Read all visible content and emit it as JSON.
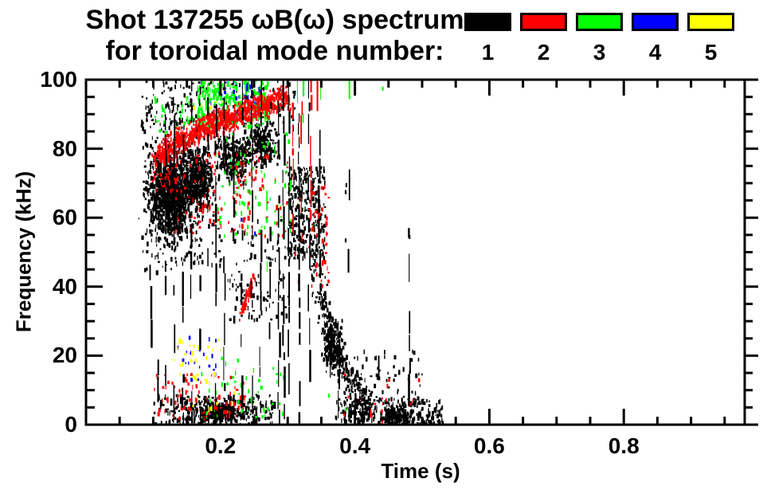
{
  "title": "Shot 137255 ωB(ω) spectrum",
  "subtitle": "for toroidal mode number:",
  "legend": [
    {
      "label": "1",
      "color": "#000000"
    },
    {
      "label": "2",
      "color": "#ff0000"
    },
    {
      "label": "3",
      "color": "#00ff00"
    },
    {
      "label": "4",
      "color": "#0000ff"
    },
    {
      "label": "5",
      "color": "#ffff00"
    }
  ],
  "axes": {
    "x": {
      "label": "Time (s)",
      "min": 0,
      "max": 1.0,
      "minor_step": 0.05,
      "major": [
        {
          "v": 0.2,
          "label": "0.2"
        },
        {
          "v": 0.4,
          "label": "0.4"
        },
        {
          "v": 0.6,
          "label": "0.6"
        },
        {
          "v": 0.8,
          "label": "0.8"
        }
      ]
    },
    "y": {
      "label": "Frequency (kHz)",
      "min": 0,
      "max": 100,
      "minor_step": 5,
      "major": [
        {
          "v": 0,
          "label": "0"
        },
        {
          "v": 20,
          "label": "20"
        },
        {
          "v": 40,
          "label": "40"
        },
        {
          "v": 60,
          "label": "60"
        },
        {
          "v": 80,
          "label": "80"
        },
        {
          "v": 100,
          "label": "100"
        }
      ]
    }
  },
  "chart_data": {
    "type": "scatter",
    "title": "Shot 137255 ωB(ω) spectrum",
    "subtitle": "for toroidal mode number: 1 2 3 4 5",
    "xlabel": "Time (s)",
    "ylabel": "Frequency (kHz)",
    "xlim": [
      0,
      1.0
    ],
    "ylim": [
      0,
      100
    ],
    "grid": false,
    "legend_position": "top-right",
    "description": "Mode-number-colored magnetic spectrogram scatter. Activity spans t≈0.07–0.53 s. n=1 (black): dense cloud t 0.08–0.21 s at 45–90 kHz, many vertical striations t 0.09–0.35 s spanning 0–100 kHz, chirping-down trail from ~50 kHz at 0.34 s to ~5 kHz at 0.42 s, low-frequency band 0–9 kHz for t 0.10–0.28 s and 0.37–0.53 s. n=2 (red): band rising from ~78 kHz at 0.10 s to ~95 kHz at 0.30 s, vertical streaks 0.30–0.36 s, short rising chirp 31→44 kHz near t 0.24 s, sparse low-f specks. n=3 (green): patches 87–100 kHz for t 0.165–0.27 s and vertical streaks 0.27–0.35 s, sparse specks elsewhere. n=4 (blue): specks 90–100 kHz t 0.185–0.26 s and 13–26 kHz t 0.135–0.195 s. n=5 (yellow): specks 12–25 kHz t 0.13–0.20 s.",
    "modes": [
      {
        "mode": 1,
        "color": "#000000",
        "features": [
          {
            "kind": "gauss",
            "c": [
              0.125,
              67
            ],
            "s": [
              0.03,
              10
            ],
            "n": 1100
          },
          {
            "kind": "gauss",
            "c": [
              0.165,
              72
            ],
            "s": [
              0.018,
              8
            ],
            "n": 400
          },
          {
            "kind": "gauss",
            "c": [
              0.22,
              78
            ],
            "s": [
              0.022,
              6
            ],
            "n": 280
          },
          {
            "kind": "gauss",
            "c": [
              0.262,
              82
            ],
            "s": [
              0.018,
              5
            ],
            "n": 220
          },
          {
            "kind": "box",
            "t": [
              0.08,
              0.2
            ],
            "f": [
              44,
              90
            ],
            "n": 200
          },
          {
            "kind": "box",
            "t": [
              0.3,
              0.355
            ],
            "f": [
              48,
              75
            ],
            "n": 300
          },
          {
            "kind": "band",
            "pts": [
              [
                0.335,
                50
              ],
              [
                0.355,
                32
              ],
              [
                0.375,
                20
              ],
              [
                0.4,
                10
              ],
              [
                0.42,
                6
              ]
            ],
            "jt": 0.007,
            "jf": 6,
            "n": 320
          },
          {
            "kind": "gauss",
            "c": [
              0.365,
              24
            ],
            "s": [
              0.012,
              6
            ],
            "n": 180
          },
          {
            "kind": "box",
            "t": [
              0.4,
              0.5
            ],
            "f": [
              8,
              22
            ],
            "n": 50
          },
          {
            "kind": "box",
            "t": [
              0.1,
              0.28
            ],
            "f": [
              0,
              9
            ],
            "n": 260
          },
          {
            "kind": "gauss",
            "c": [
              0.2,
              4
            ],
            "s": [
              0.03,
              2.5
            ],
            "n": 300
          },
          {
            "kind": "box",
            "t": [
              0.37,
              0.53
            ],
            "f": [
              0,
              8
            ],
            "n": 300
          },
          {
            "kind": "gauss",
            "c": [
              0.46,
              3
            ],
            "s": [
              0.018,
              2
            ],
            "n": 140
          },
          {
            "kind": "box",
            "t": [
              0.08,
              0.31
            ],
            "f": [
              86,
              100
            ],
            "n": 200
          },
          {
            "kind": "box",
            "t": [
              0.21,
              0.3
            ],
            "f": [
              30,
              60
            ],
            "n": 100
          },
          {
            "kind": "dots",
            "pts": [
              [
                0.385,
                68
              ],
              [
                0.386,
                70
              ],
              [
                0.385,
                54
              ],
              [
                0.48,
                55
              ],
              [
                0.435,
                14
              ],
              [
                0.44,
                10
              ]
            ]
          },
          {
            "kind": "vline",
            "front": true,
            "t": 0.095,
            "f": [
              30,
              80
            ],
            "fill": 0.45
          },
          {
            "kind": "vline",
            "front": true,
            "t": 0.107,
            "f": [
              5,
              88
            ],
            "fill": 0.5
          },
          {
            "kind": "vline",
            "front": true,
            "t": 0.118,
            "f": [
              0,
              90
            ],
            "fill": 0.55
          },
          {
            "kind": "vline",
            "front": true,
            "t": 0.13,
            "f": [
              0,
              95
            ],
            "fill": 0.6
          },
          {
            "kind": "vline",
            "front": true,
            "t": 0.143,
            "f": [
              0,
              95
            ],
            "fill": 0.5
          },
          {
            "kind": "vline",
            "front": true,
            "t": 0.156,
            "f": [
              0,
              100
            ],
            "fill": 0.6
          },
          {
            "kind": "vline",
            "front": true,
            "t": 0.169,
            "f": [
              0,
              98
            ],
            "fill": 0.55
          },
          {
            "kind": "vline",
            "front": true,
            "t": 0.18,
            "f": [
              35,
              100
            ],
            "fill": 0.5
          },
          {
            "kind": "vline",
            "front": true,
            "t": 0.192,
            "f": [
              0,
              100
            ],
            "fill": 0.6
          },
          {
            "kind": "vline",
            "front": true,
            "t": 0.205,
            "f": [
              0,
              100
            ],
            "fill": 0.55
          },
          {
            "kind": "vline",
            "front": true,
            "t": 0.218,
            "f": [
              15,
              100
            ],
            "fill": 0.5
          },
          {
            "kind": "vline",
            "front": true,
            "t": 0.231,
            "f": [
              0,
              100
            ],
            "fill": 0.6
          },
          {
            "kind": "vline",
            "front": true,
            "t": 0.246,
            "f": [
              0,
              100
            ],
            "fill": 0.55
          },
          {
            "kind": "vline",
            "front": true,
            "t": 0.259,
            "f": [
              0,
              100
            ],
            "fill": 0.5
          },
          {
            "kind": "vline",
            "front": true,
            "t": 0.273,
            "f": [
              25,
              100
            ],
            "fill": 0.45
          },
          {
            "kind": "vline",
            "front": true,
            "t": 0.286,
            "f": [
              0,
              100
            ],
            "fill": 0.92
          },
          {
            "kind": "vline",
            "front": true,
            "t": 0.293,
            "f": [
              0,
              100
            ],
            "fill": 0.9
          },
          {
            "kind": "vline",
            "front": true,
            "t": 0.301,
            "f": [
              0,
              100
            ],
            "fill": 0.88
          },
          {
            "kind": "vline",
            "front": true,
            "t": 0.316,
            "f": [
              0,
              100
            ],
            "fill": 0.6
          },
          {
            "kind": "vline",
            "front": true,
            "t": 0.331,
            "f": [
              0,
              100
            ],
            "fill": 0.65
          },
          {
            "kind": "vline",
            "front": true,
            "t": 0.346,
            "f": [
              45,
              100
            ],
            "fill": 0.5
          },
          {
            "kind": "vline",
            "front": true,
            "t": 0.362,
            "f": [
              6,
              34
            ],
            "fill": 0.5
          },
          {
            "kind": "vline",
            "front": true,
            "t": 0.375,
            "f": [
              6,
              30
            ],
            "fill": 0.45
          },
          {
            "kind": "vline",
            "front": true,
            "t": 0.39,
            "f": [
              50,
              74
            ],
            "fill": 0.4
          },
          {
            "kind": "vline",
            "front": true,
            "t": 0.41,
            "f": [
              0,
              10
            ],
            "fill": 0.4
          },
          {
            "kind": "vline",
            "front": true,
            "t": 0.435,
            "f": [
              8,
              20
            ],
            "fill": 0.35
          },
          {
            "kind": "vline",
            "front": true,
            "t": 0.48,
            "f": [
              0,
              57
            ],
            "fill": 0.5
          }
        ]
      },
      {
        "mode": 2,
        "color": "#ff0000",
        "features": [
          {
            "kind": "band",
            "pts": [
              [
                0.105,
                78
              ],
              [
                0.14,
                83
              ],
              [
                0.18,
                87
              ],
              [
                0.22,
                90
              ],
              [
                0.26,
                93
              ],
              [
                0.3,
                95
              ]
            ],
            "jt": 0.005,
            "jf": 4.5,
            "n": 850
          },
          {
            "kind": "box",
            "t": [
              0.13,
              0.3
            ],
            "f": [
              55,
              80
            ],
            "n": 130
          },
          {
            "kind": "box",
            "t": [
              0.33,
              0.36
            ],
            "f": [
              40,
              70
            ],
            "n": 50
          },
          {
            "kind": "band",
            "pts": [
              [
                0.228,
                31
              ],
              [
                0.25,
                44
              ]
            ],
            "jt": 0.002,
            "jf": 1.5,
            "n": 55
          },
          {
            "kind": "box",
            "t": [
              0.1,
              0.24
            ],
            "f": [
              2,
              15
            ],
            "n": 80
          },
          {
            "kind": "box",
            "t": [
              0.095,
              0.135
            ],
            "f": [
              68,
              79
            ],
            "n": 45
          },
          {
            "kind": "box",
            "t": [
              0.38,
              0.51
            ],
            "f": [
              1,
              16
            ],
            "n": 18
          },
          {
            "kind": "vline",
            "t": 0.307,
            "f": [
              60,
              100
            ],
            "fill": 0.5
          },
          {
            "kind": "vline",
            "t": 0.32,
            "f": [
              45,
              100
            ],
            "fill": 0.5
          },
          {
            "kind": "vline",
            "t": 0.333,
            "f": [
              55,
              100
            ],
            "fill": 0.5
          },
          {
            "kind": "vline",
            "t": 0.344,
            "f": [
              62,
              100
            ],
            "fill": 0.45
          },
          {
            "kind": "vline",
            "t": 0.353,
            "f": [
              75,
              100
            ],
            "fill": 0.4
          },
          {
            "kind": "dots",
            "pts": [
              [
                0.31,
                50
              ],
              [
                0.315,
                42
              ]
            ]
          }
        ]
      },
      {
        "mode": 3,
        "color": "#00ff00",
        "features": [
          {
            "kind": "box",
            "t": [
              0.165,
              0.27
            ],
            "f": [
              87,
              100
            ],
            "n": 300
          },
          {
            "kind": "box",
            "t": [
              0.19,
              0.31
            ],
            "f": [
              55,
              85
            ],
            "n": 80
          },
          {
            "kind": "box",
            "t": [
              0.17,
              0.3
            ],
            "f": [
              2,
              20
            ],
            "n": 50
          },
          {
            "kind": "box",
            "t": [
              0.1,
              0.16
            ],
            "f": [
              85,
              96
            ],
            "n": 30
          },
          {
            "kind": "vline",
            "t": 0.268,
            "f": [
              40,
              100
            ],
            "fill": 0.4
          },
          {
            "kind": "vline",
            "t": 0.279,
            "f": [
              65,
              100
            ],
            "fill": 0.45
          },
          {
            "kind": "vline",
            "t": 0.302,
            "f": [
              30,
              100
            ],
            "fill": 0.22
          },
          {
            "kind": "vline",
            "t": 0.313,
            "f": [
              60,
              100
            ],
            "fill": 0.3
          },
          {
            "kind": "vline",
            "t": 0.323,
            "f": [
              80,
              100
            ],
            "fill": 0.4
          },
          {
            "kind": "vline",
            "t": 0.336,
            "f": [
              72,
              94
            ],
            "fill": 0.4
          },
          {
            "kind": "vline",
            "t": 0.347,
            "f": [
              85,
              100
            ],
            "fill": 0.45
          },
          {
            "kind": "vline",
            "t": 0.39,
            "f": [
              94,
              100
            ],
            "fill": 0.5
          },
          {
            "kind": "dots",
            "pts": [
              [
                0.36,
                9
              ],
              [
                0.385,
                5
              ],
              [
                0.44,
                98
              ]
            ]
          }
        ]
      },
      {
        "mode": 4,
        "color": "#0000ff",
        "features": [
          {
            "kind": "box",
            "t": [
              0.185,
              0.26
            ],
            "f": [
              90,
              100
            ],
            "n": 40
          },
          {
            "kind": "box",
            "t": [
              0.135,
              0.195
            ],
            "f": [
              13,
              26
            ],
            "n": 22
          },
          {
            "kind": "dots",
            "pts": [
              [
                0.23,
                60
              ],
              [
                0.25,
                56
              ]
            ]
          }
        ]
      },
      {
        "mode": 5,
        "color": "#ffff00",
        "features": [
          {
            "kind": "box",
            "t": [
              0.13,
              0.2
            ],
            "f": [
              12,
              25
            ],
            "n": 32
          },
          {
            "kind": "box",
            "t": [
              0.155,
              0.21
            ],
            "f": [
              90,
              95
            ],
            "n": 6
          },
          {
            "kind": "box",
            "t": [
              0.15,
              0.22
            ],
            "f": [
              4,
              10
            ],
            "n": 8
          }
        ]
      }
    ]
  }
}
